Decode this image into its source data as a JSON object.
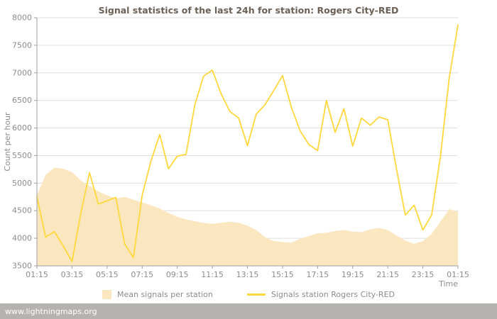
{
  "footer": {
    "watermark": "www.lightningmaps.org"
  },
  "chart_data": {
    "type": "line",
    "title": "Signal statistics of the last 24h for station: Rogers City-RED",
    "xlabel": "Time",
    "ylabel": "Count per hour",
    "ylim": [
      3500,
      8000
    ],
    "ytick_step": 500,
    "grid": "horizontal",
    "legend_position": "bottom",
    "x_ticks": [
      "01:15",
      "03:15",
      "05:15",
      "07:15",
      "09:15",
      "11:15",
      "13:15",
      "15:15",
      "17:15",
      "19:15",
      "21:15",
      "23:15",
      "01:15"
    ],
    "x": [
      "01:15",
      "01:45",
      "02:15",
      "02:45",
      "03:15",
      "03:45",
      "04:15",
      "04:45",
      "05:15",
      "05:45",
      "06:15",
      "06:45",
      "07:15",
      "07:45",
      "08:15",
      "08:45",
      "09:15",
      "09:45",
      "10:15",
      "10:45",
      "11:15",
      "11:45",
      "12:15",
      "12:45",
      "13:15",
      "13:45",
      "14:15",
      "14:45",
      "15:15",
      "15:45",
      "16:15",
      "16:45",
      "17:15",
      "17:45",
      "18:15",
      "18:45",
      "19:15",
      "19:45",
      "20:15",
      "20:45",
      "21:15",
      "21:45",
      "22:15",
      "22:45",
      "23:15",
      "23:45",
      "00:15",
      "00:45",
      "01:15"
    ],
    "series": [
      {
        "name": "Mean signals per station",
        "type": "area",
        "color": "#FAE7C0",
        "values": [
          4780,
          5150,
          5280,
          5260,
          5200,
          5050,
          4950,
          4850,
          4780,
          4720,
          4750,
          4700,
          4650,
          4600,
          4540,
          4460,
          4390,
          4340,
          4310,
          4280,
          4260,
          4280,
          4300,
          4280,
          4230,
          4150,
          4020,
          3950,
          3930,
          3920,
          3990,
          4040,
          4090,
          4100,
          4130,
          4150,
          4120,
          4110,
          4160,
          4190,
          4150,
          4050,
          3960,
          3900,
          3950,
          4080,
          4300,
          4530,
          4480
        ]
      },
      {
        "name": "Signals station Rogers City-RED",
        "type": "line",
        "color": "#FFD83C",
        "values": [
          4750,
          4020,
          4120,
          3860,
          3580,
          4450,
          5190,
          4620,
          4680,
          4740,
          3900,
          3650,
          4780,
          5400,
          5880,
          5260,
          5490,
          5520,
          6420,
          6940,
          7050,
          6620,
          6300,
          6180,
          5680,
          6250,
          6420,
          6680,
          6950,
          6380,
          5950,
          5700,
          5590,
          6500,
          5920,
          6350,
          5670,
          6180,
          6050,
          6200,
          6150,
          5250,
          4420,
          4600,
          4150,
          4420,
          5480,
          6900,
          7870
        ]
      }
    ]
  }
}
